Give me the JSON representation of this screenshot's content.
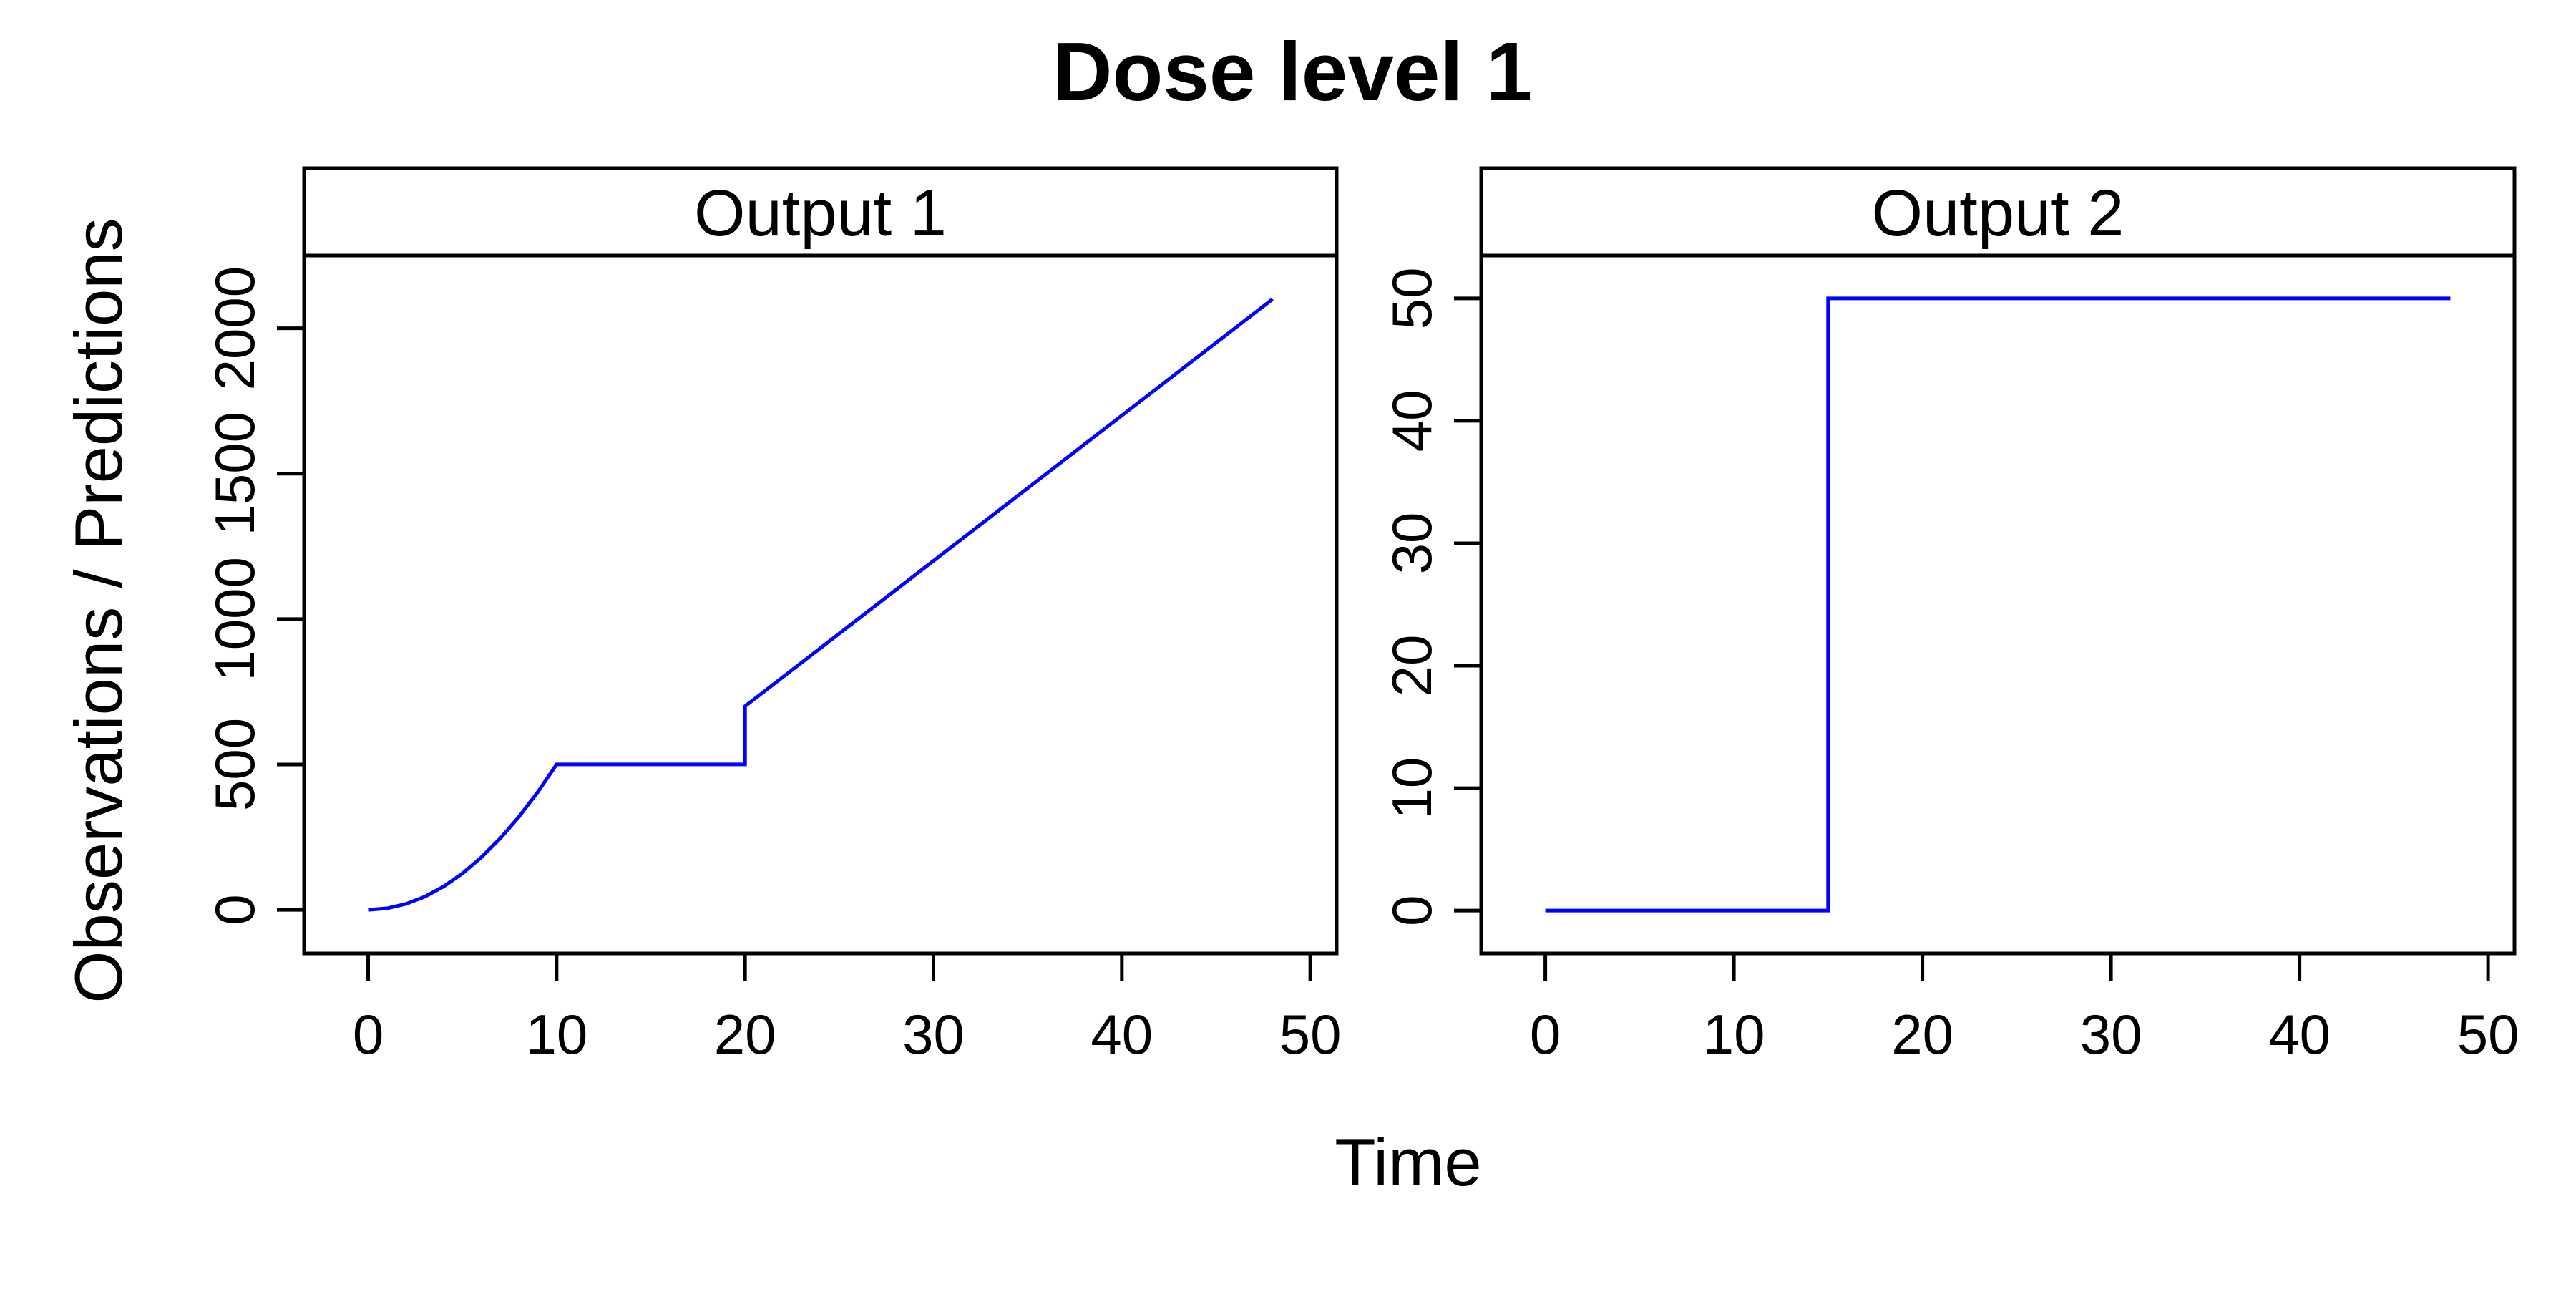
{
  "title": "Dose level 1",
  "xlabel": "Time",
  "ylabel": "Observations / Predictions",
  "colors": {
    "line": "#0000ff",
    "frame": "#000000",
    "background": "#ffffff"
  },
  "chart_data": [
    {
      "type": "line",
      "panel_title": "Output 1",
      "xlim": [
        -3.4,
        51.4
      ],
      "ylim": [
        -150,
        2250
      ],
      "xticks": [
        0,
        10,
        20,
        30,
        40,
        50
      ],
      "yticks": [
        0,
        500,
        1000,
        1500,
        2000
      ],
      "grid": false,
      "series": [
        {
          "x": [
            0,
            1,
            2,
            3,
            4,
            5,
            6,
            7,
            8,
            9,
            10,
            20,
            20,
            48
          ],
          "y": [
            0,
            5,
            20,
            45,
            80,
            125,
            180,
            245,
            320,
            405,
            500,
            500,
            700,
            2100
          ]
        }
      ]
    },
    {
      "type": "line",
      "panel_title": "Output 2",
      "xlim": [
        -3.4,
        51.4
      ],
      "ylim": [
        -3.5,
        53.5
      ],
      "xticks": [
        0,
        10,
        20,
        30,
        40,
        50
      ],
      "yticks": [
        0,
        10,
        20,
        30,
        40,
        50
      ],
      "grid": false,
      "series": [
        {
          "x": [
            0,
            15,
            15,
            48
          ],
          "y": [
            0,
            0,
            50,
            50
          ]
        }
      ]
    }
  ]
}
